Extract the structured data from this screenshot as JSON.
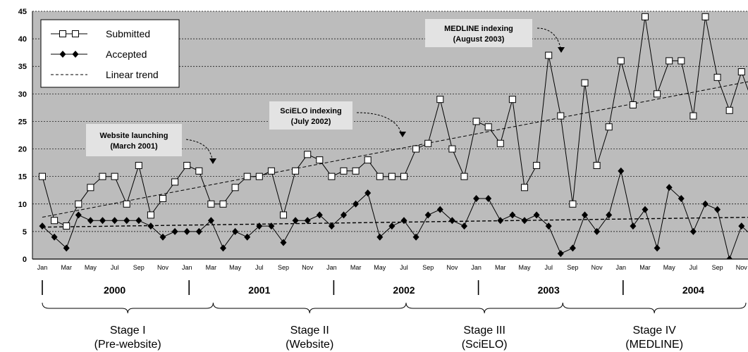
{
  "chart_data": {
    "type": "line",
    "ylim": [
      0,
      45
    ],
    "yticks": [
      0,
      5,
      10,
      15,
      20,
      25,
      30,
      35,
      40,
      45
    ],
    "grid": true,
    "legend_position": "top-left",
    "month_labels": [
      "Jan",
      "Mar",
      "May",
      "Jul",
      "Sep",
      "Nov"
    ],
    "years": [
      "2000",
      "2001",
      "2002",
      "2003",
      "2004"
    ],
    "stages": [
      {
        "line1": "Stage I",
        "line2": "(Pre-website)"
      },
      {
        "line1": "Stage II",
        "line2": "(Website)"
      },
      {
        "line1": "Stage III",
        "line2": "(SciELO)"
      },
      {
        "line1": "Stage IV",
        "line2": "(MEDLINE)"
      }
    ],
    "series": [
      {
        "name": "Submitted",
        "marker": "open-square",
        "values": [
          15,
          7,
          6,
          10,
          13,
          15,
          15,
          10,
          17,
          8,
          11,
          14,
          17,
          16,
          10,
          10,
          13,
          15,
          15,
          16,
          8,
          16,
          19,
          18,
          15,
          16,
          16,
          18,
          15,
          15,
          15,
          20,
          21,
          29,
          20,
          15,
          25,
          24,
          21,
          29,
          13,
          17,
          37,
          26,
          10,
          32,
          17,
          24,
          36,
          28,
          44,
          30,
          36,
          36,
          26,
          44,
          33,
          27,
          34,
          28
        ]
      },
      {
        "name": "Accepted",
        "marker": "filled-diamond",
        "values": [
          6,
          4,
          2,
          8,
          7,
          7,
          7,
          7,
          7,
          6,
          4,
          5,
          5,
          5,
          7,
          2,
          5,
          4,
          6,
          6,
          3,
          7,
          7,
          8,
          6,
          8,
          10,
          12,
          4,
          6,
          7,
          4,
          8,
          9,
          7,
          6,
          11,
          11,
          7,
          8,
          7,
          8,
          6,
          1,
          2,
          8,
          5,
          8,
          16,
          6,
          9,
          2,
          13,
          11,
          5,
          10,
          9,
          0,
          6,
          4
        ]
      }
    ],
    "trend_label": "Linear trend",
    "trends": {
      "submitted": {
        "start": 7.6,
        "end": 32.4
      },
      "accepted": {
        "start": 5.8,
        "end": 7.6
      }
    },
    "annotations": [
      {
        "id": "website",
        "line1": "Website launching",
        "line2": "(March 2001)"
      },
      {
        "id": "scielo",
        "line1": "SciELO indexing",
        "line2": "(July 2002)"
      },
      {
        "id": "medline",
        "line1": "MEDLINE indexing",
        "line2": "(August 2003)"
      }
    ]
  }
}
